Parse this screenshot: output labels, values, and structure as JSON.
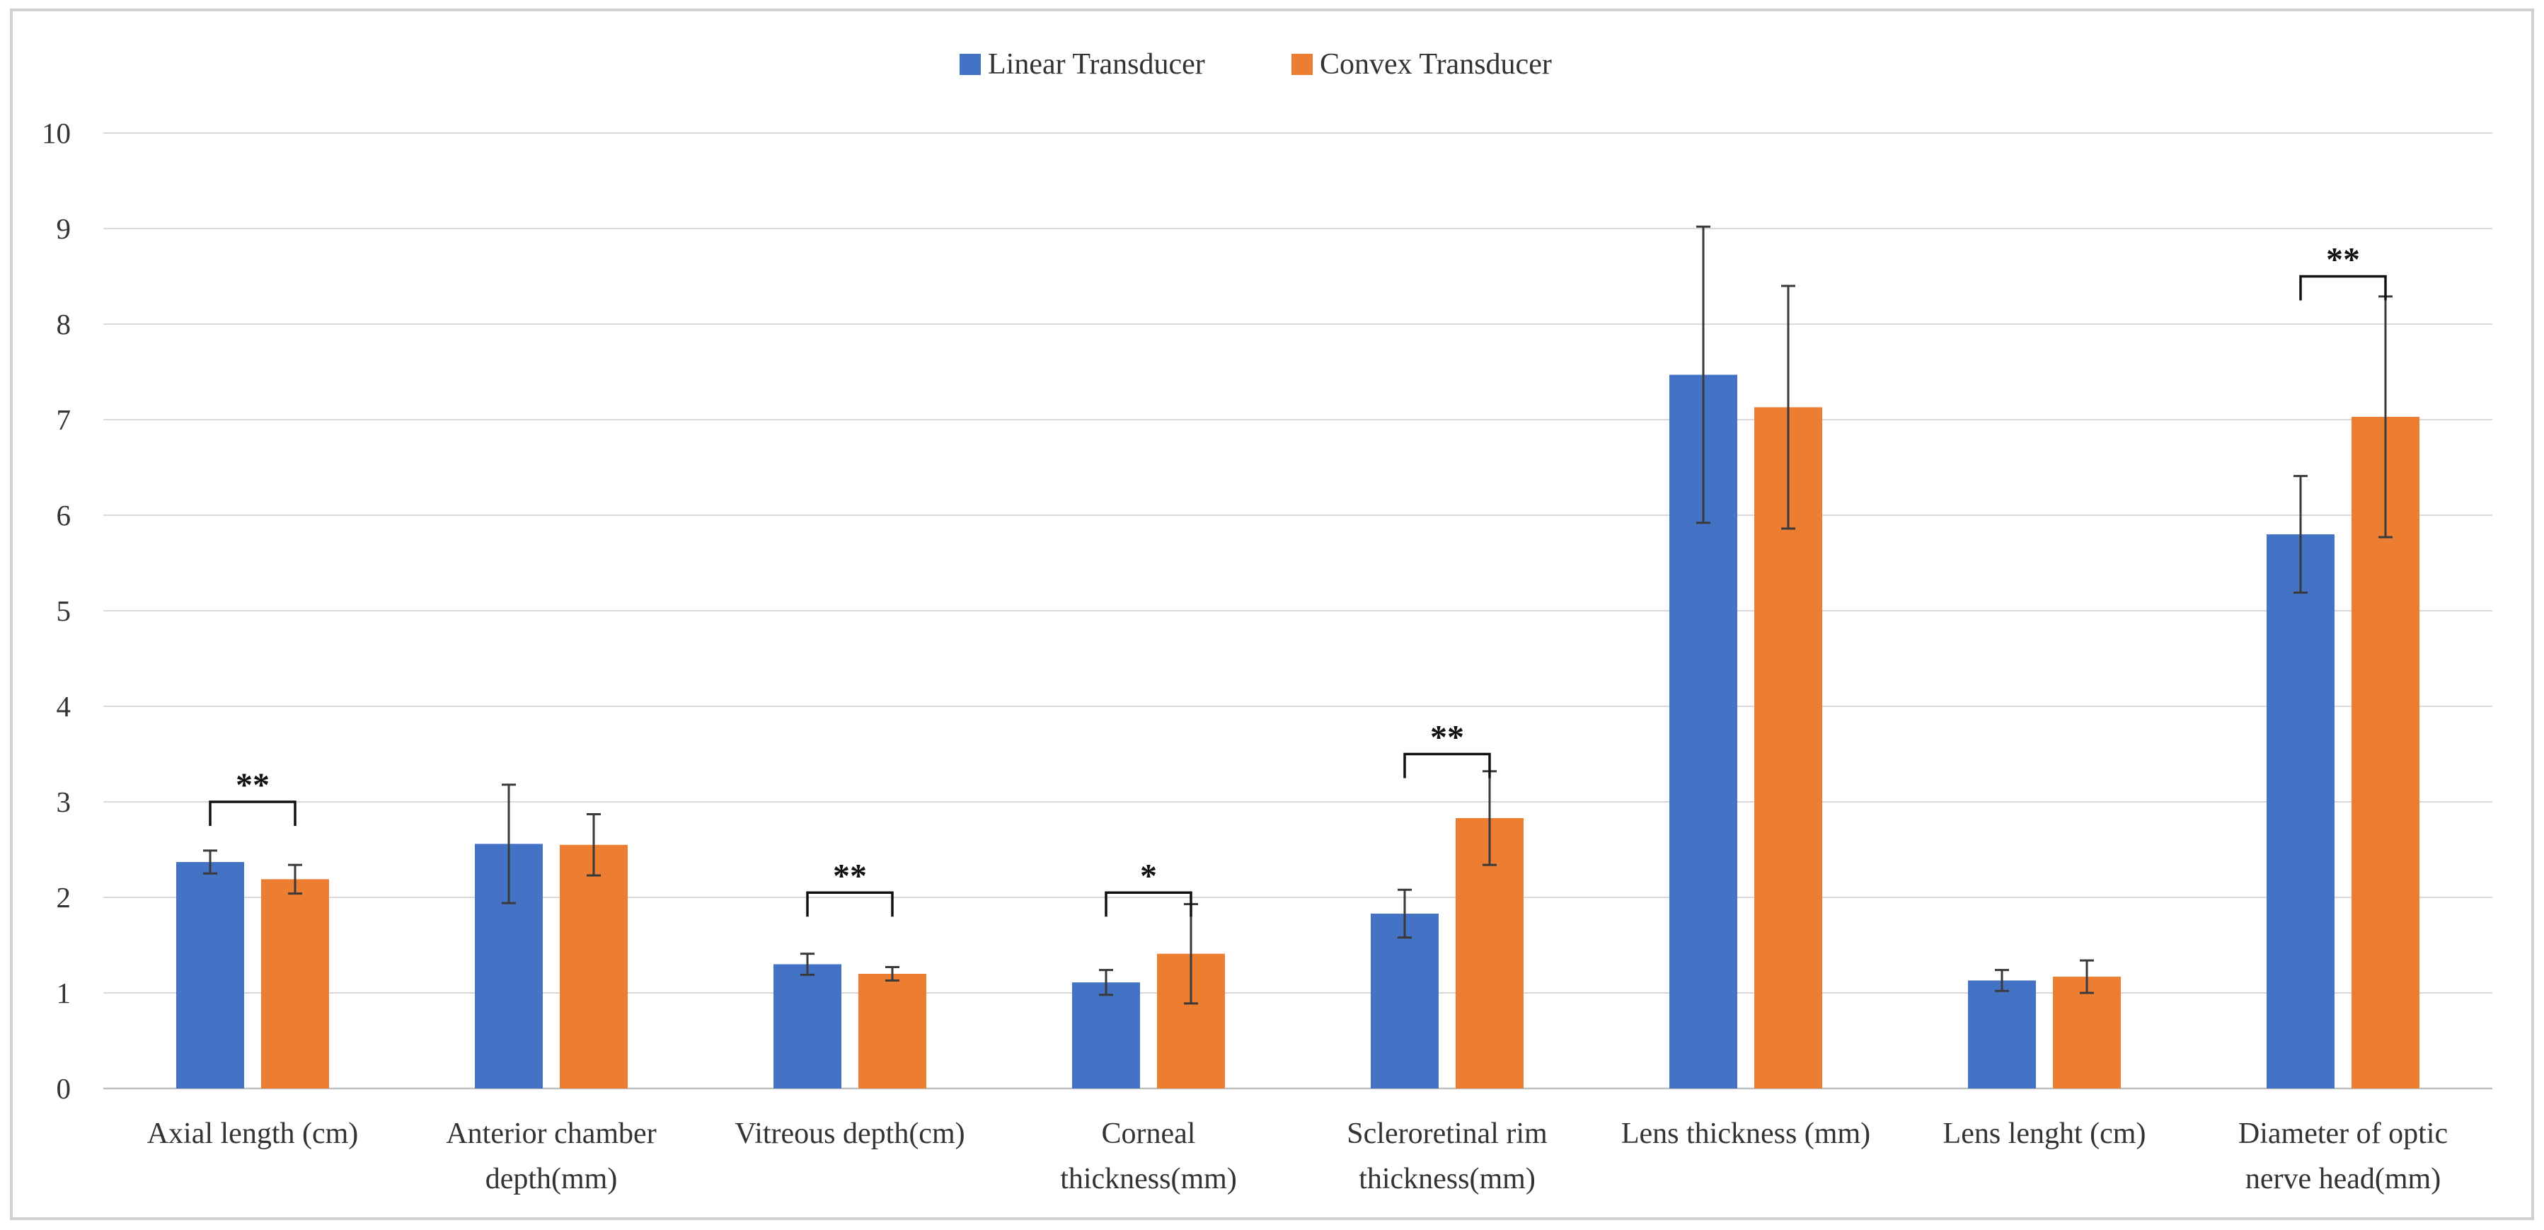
{
  "chart_data": {
    "type": "bar",
    "title": "",
    "xlabel": "",
    "ylabel": "",
    "ylim": [
      0,
      10
    ],
    "yticks": [
      "0",
      "1",
      "2",
      "3",
      "4",
      "5",
      "6",
      "7",
      "8",
      "9",
      "10"
    ],
    "grid": true,
    "legend_position": "top-center",
    "categories": [
      [
        "Axial length (cm)"
      ],
      [
        "Anterior chamber",
        "depth(mm)"
      ],
      [
        "Vitreous depth(cm)"
      ],
      [
        "Corneal",
        "thickness(mm)"
      ],
      [
        "Scleroretinal rim",
        "thickness(mm)"
      ],
      [
        "Lens thickness (mm)"
      ],
      [
        "Lens lenght (cm)"
      ],
      [
        "Diameter of optic",
        "nerve head(mm)"
      ]
    ],
    "series": [
      {
        "name": "Linear Transducer",
        "color": "#4472C4",
        "values": [
          2.37,
          2.56,
          1.3,
          1.11,
          1.83,
          7.47,
          1.13,
          5.8
        ],
        "errors": [
          0.12,
          0.62,
          0.11,
          0.13,
          0.25,
          1.55,
          0.11,
          0.61
        ]
      },
      {
        "name": "Convex Transducer",
        "color": "#ED7D31",
        "values": [
          2.19,
          2.55,
          1.2,
          1.41,
          2.83,
          7.13,
          1.17,
          7.03
        ],
        "errors": [
          0.15,
          0.32,
          0.07,
          0.52,
          0.49,
          1.27,
          0.17,
          1.26
        ]
      }
    ],
    "significance": [
      {
        "category_index": 0,
        "label": "**",
        "bracket_y": 3.0
      },
      {
        "category_index": 2,
        "label": "**",
        "bracket_y": 2.05
      },
      {
        "category_index": 3,
        "label": "*",
        "bracket_y": 2.05
      },
      {
        "category_index": 4,
        "label": "**",
        "bracket_y": 3.5
      },
      {
        "category_index": 7,
        "label": "**",
        "bracket_y": 8.5
      }
    ]
  }
}
